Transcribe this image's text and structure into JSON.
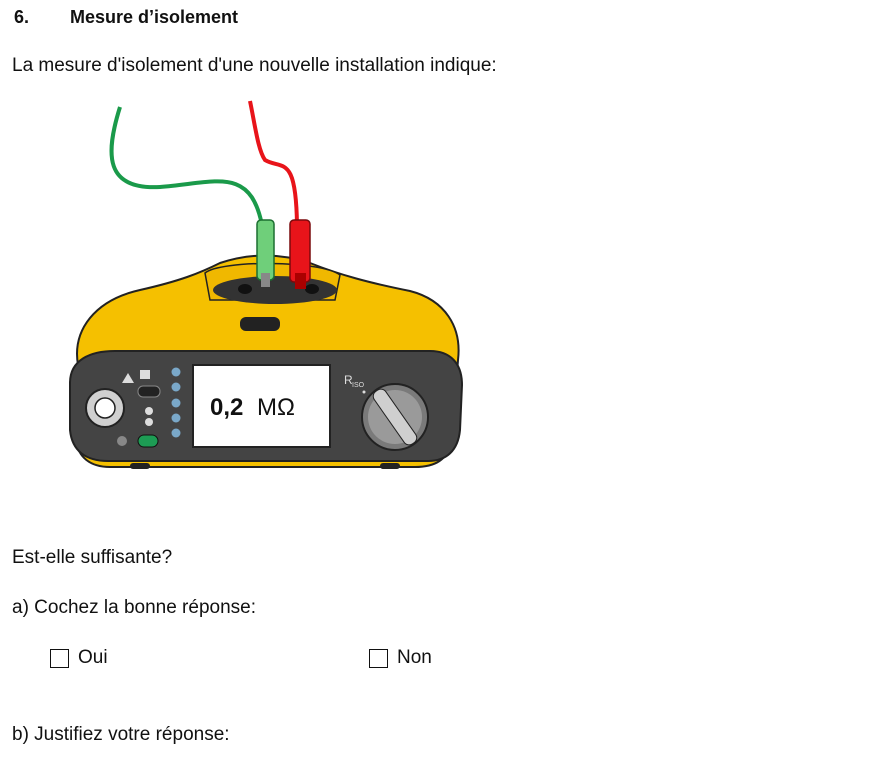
{
  "section": {
    "number": "6.",
    "title": "Mesure d’isolement"
  },
  "intro": "La mesure d'isolement d'une nouvelle installation indique:",
  "meter": {
    "display_value": "0,2",
    "display_unit": "MΩ",
    "dial_label": "R",
    "dial_sub": "ISO",
    "body_color": "#f5c000",
    "lead_green": "#1a9a4a",
    "lead_red": "#e8141a"
  },
  "question": "Est-elle suffisante?",
  "part_a": "a) Cochez la bonne réponse:",
  "options": [
    {
      "label": "Oui"
    },
    {
      "label": "Non"
    }
  ],
  "part_b": "b) Justifiez votre réponse:"
}
